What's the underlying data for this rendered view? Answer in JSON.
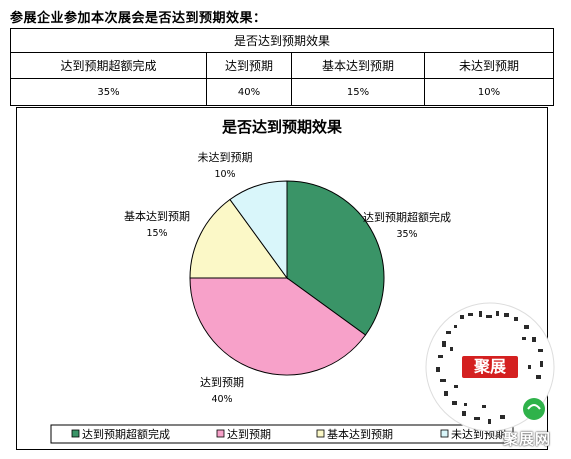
{
  "section_title": "参展企业参加本次展会是否达到预期效果：",
  "table": {
    "header": "是否达到预期效果",
    "categories": [
      "达到预期超额完成",
      "达到预期",
      "基本达到预期",
      "未达到预期"
    ],
    "values": [
      "35%",
      "40%",
      "15%",
      "10%"
    ]
  },
  "chart_data": {
    "type": "pie",
    "title": "是否达到预期效果",
    "categories": [
      "达到预期超额完成",
      "达到预期",
      "基本达到预期",
      "未达到预期"
    ],
    "values": [
      35,
      40,
      15,
      10
    ],
    "value_labels": [
      "35%",
      "40%",
      "15%",
      "10%"
    ],
    "colors": [
      "#3a9467",
      "#f7a1c9",
      "#fbf8c7",
      "#d9f6fa"
    ],
    "legend_position": "bottom"
  },
  "watermark": {
    "logo_text": "聚展",
    "text": "聚展网"
  }
}
